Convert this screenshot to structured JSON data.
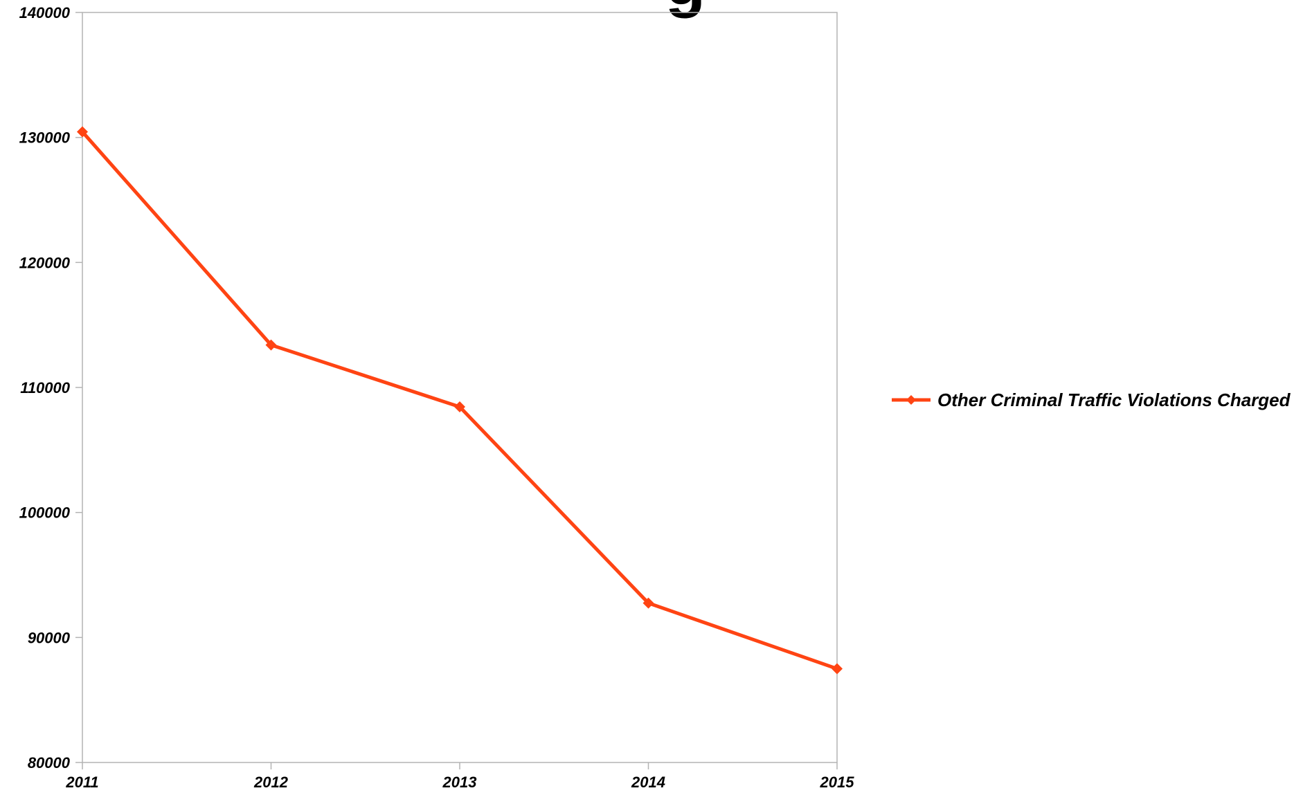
{
  "chart_data": {
    "type": "line",
    "title": "g",
    "categories": [
      "2011",
      "2012",
      "2013",
      "2014",
      "2015"
    ],
    "series": [
      {
        "name": "Other Criminal Traffic Violations Charged",
        "values": [
          130450,
          113400,
          108450,
          92750,
          87500
        ],
        "color": "#ff4413",
        "marker": "diamond"
      }
    ],
    "ylim": [
      80000,
      140000
    ],
    "yticks": [
      "80000",
      "90000",
      "100000",
      "110000",
      "120000",
      "130000",
      "140000"
    ],
    "grid": false,
    "legend_position": "right"
  }
}
